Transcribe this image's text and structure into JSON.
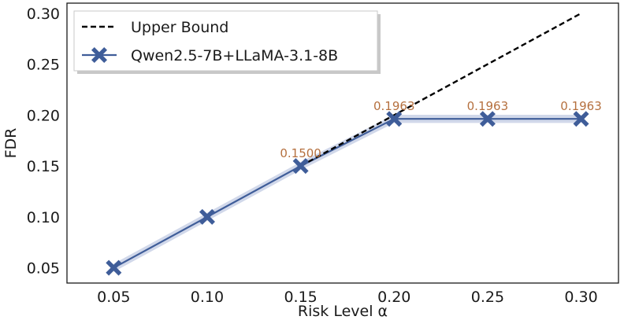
{
  "chart_data": {
    "type": "line",
    "title": "",
    "xlabel": "Risk Level α",
    "ylabel": "FDR",
    "xlim": [
      0.025,
      0.32
    ],
    "ylim": [
      0.035,
      0.31
    ],
    "x_ticks": [
      0.05,
      0.1,
      0.15,
      0.2,
      0.25,
      0.3
    ],
    "x_tick_labels": [
      "0.05",
      "0.10",
      "0.15",
      "0.20",
      "0.25",
      "0.30"
    ],
    "y_ticks": [
      0.05,
      0.1,
      0.15,
      0.2,
      0.25,
      0.3
    ],
    "y_tick_labels": [
      "0.05",
      "0.10",
      "0.15",
      "0.20",
      "0.25",
      "0.30"
    ],
    "grid": false,
    "legend_position": "top-left",
    "series": [
      {
        "name": "Upper Bound",
        "style": "dashed",
        "color": "#000000",
        "x": [
          0.15,
          0.3
        ],
        "values": [
          0.15,
          0.3
        ]
      },
      {
        "name": "Qwen2.5-7B+LLaMA-3.1-8B",
        "style": "solid",
        "marker": "X",
        "color": "#3f5d99",
        "band_color": "#c9d1e6",
        "band_halfwidth": 0.004,
        "x": [
          0.05,
          0.1,
          0.15,
          0.2,
          0.25,
          0.3
        ],
        "values": [
          0.05,
          0.1,
          0.15,
          0.1963,
          0.1963,
          0.1963
        ]
      }
    ],
    "annotations": [
      {
        "x": 0.15,
        "y": 0.15,
        "text": "0.1500"
      },
      {
        "x": 0.2,
        "y": 0.1963,
        "text": "0.1963"
      },
      {
        "x": 0.25,
        "y": 0.1963,
        "text": "0.1963"
      },
      {
        "x": 0.3,
        "y": 0.1963,
        "text": "0.1963"
      }
    ],
    "annotation_color": "#b5703f"
  }
}
